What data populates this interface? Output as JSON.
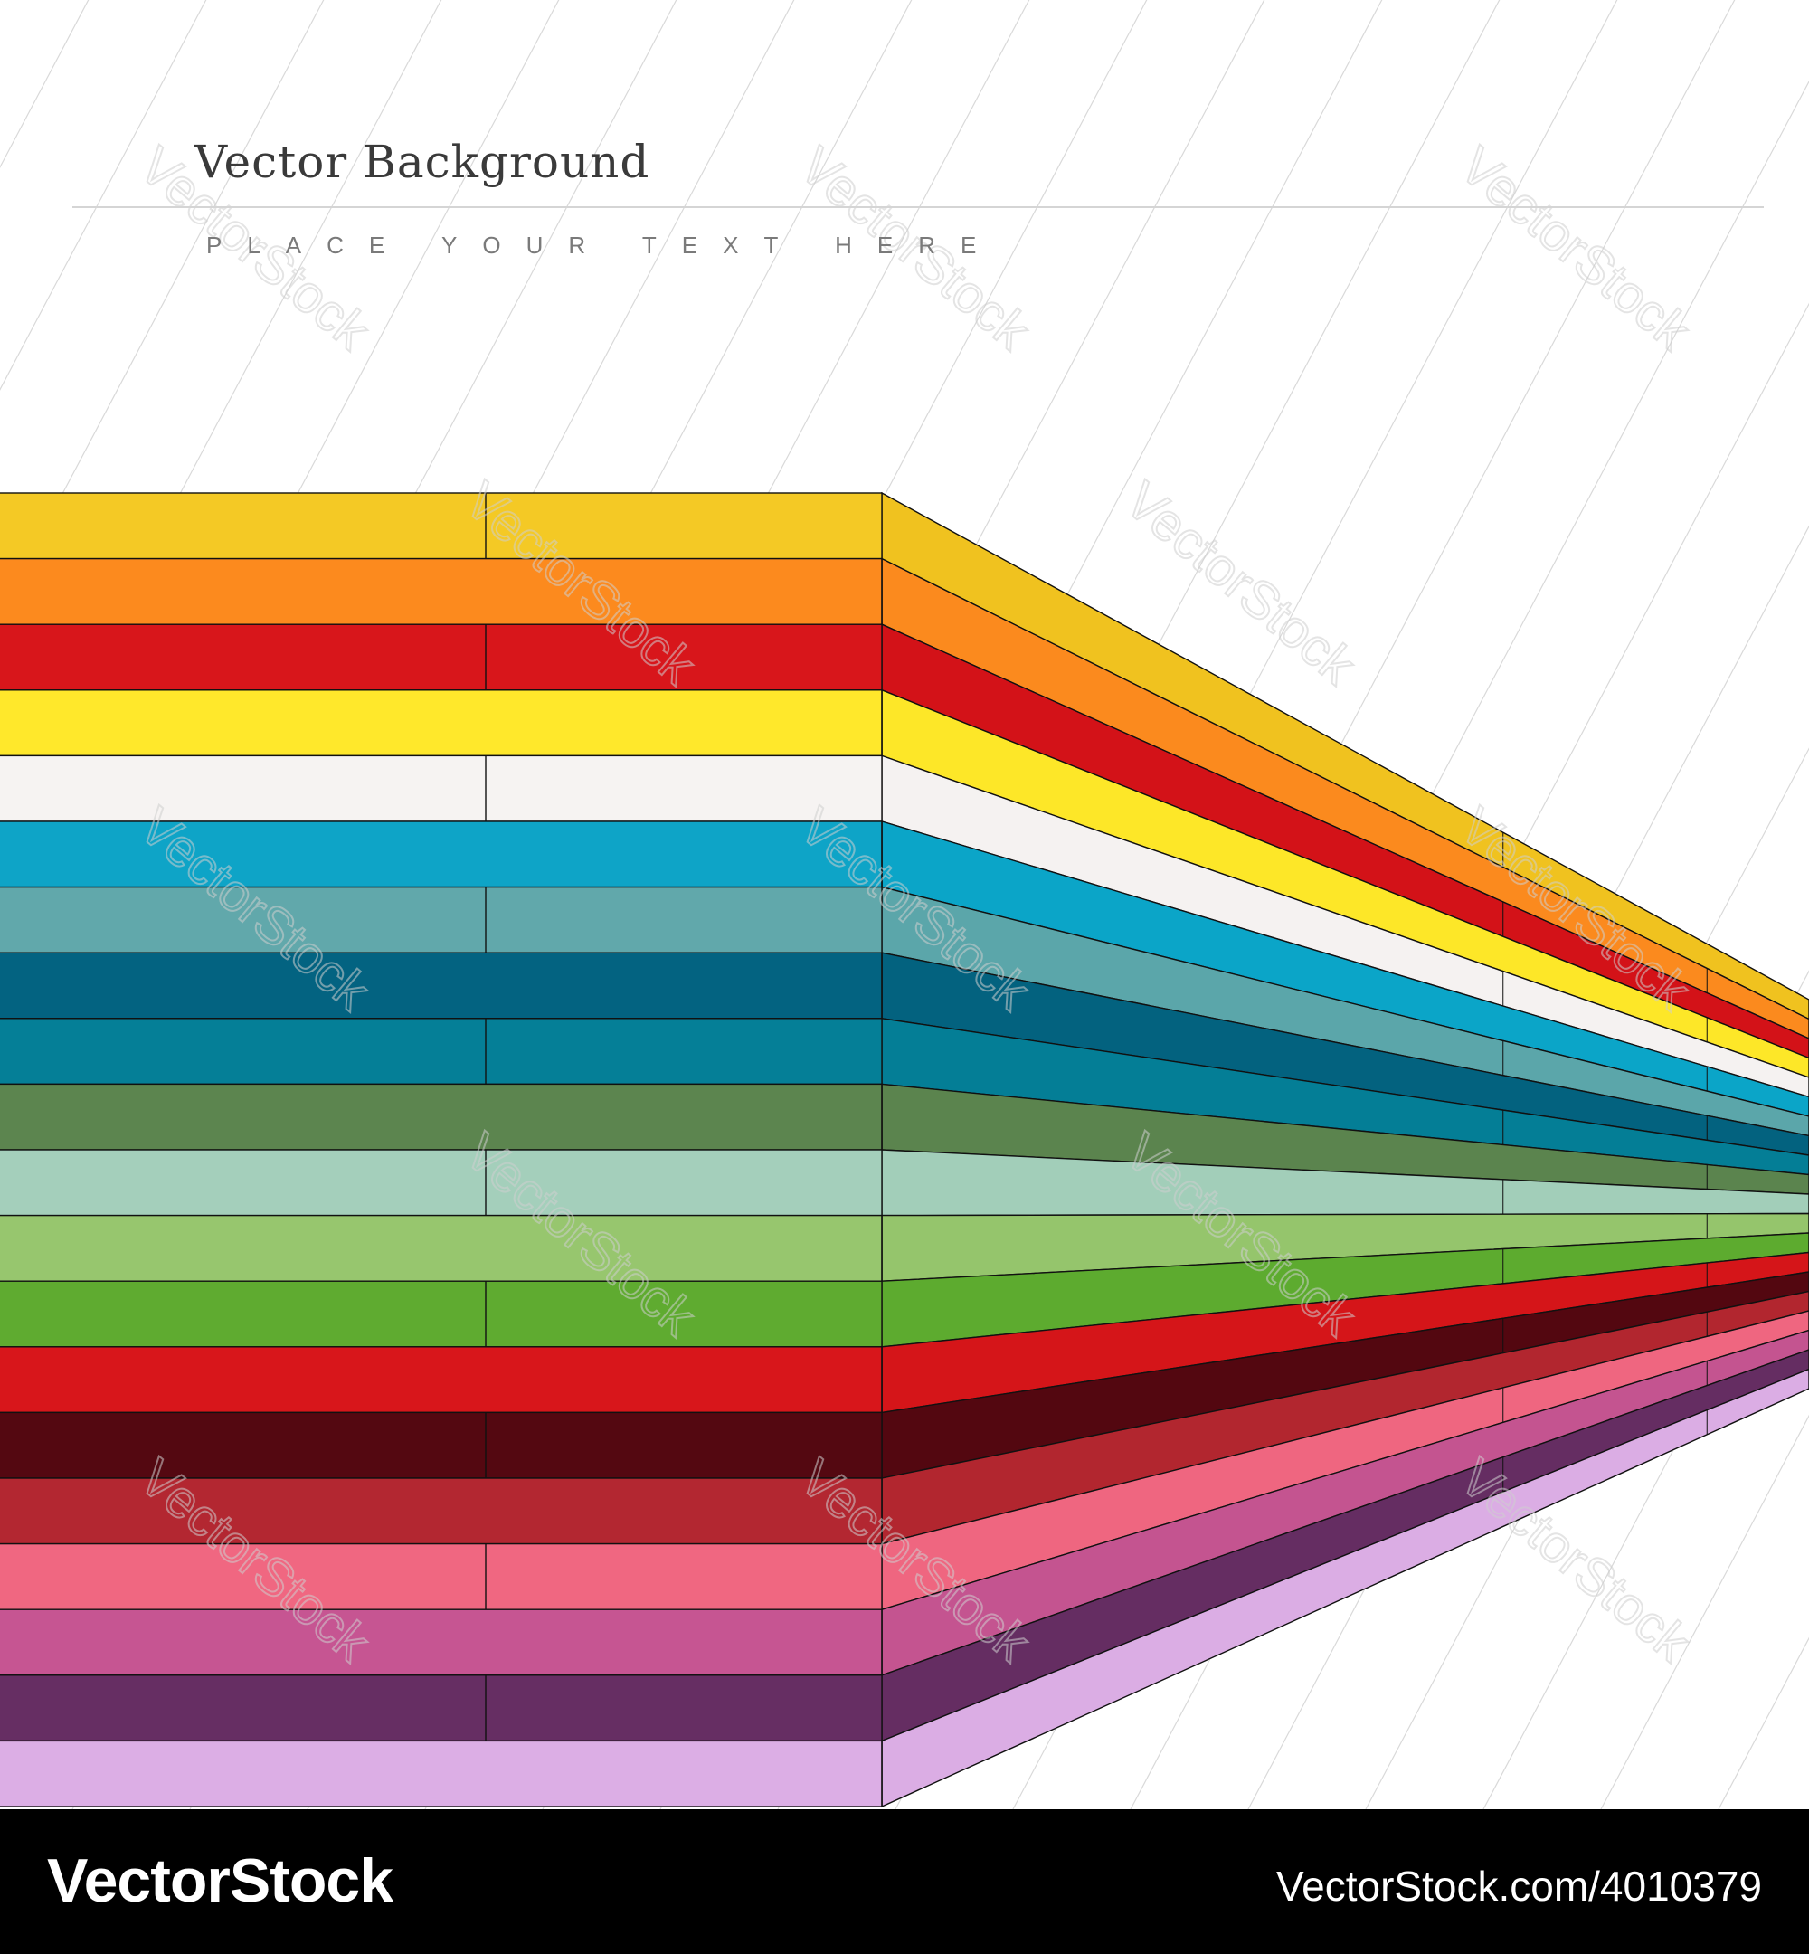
{
  "header": {
    "title": "Vector Background",
    "subtitle": "PLACE YOUR TEXT HERE"
  },
  "footer": {
    "brand": "VectorStock",
    "image_id": "VectorStock.com/4010379"
  },
  "watermark": {
    "text": "VectorStock"
  },
  "stripes": {
    "colors": [
      {
        "front": "#f4c925",
        "side": "#f0c21f"
      },
      {
        "front": "#fc8a1e",
        "side": "#fb8a1e"
      },
      {
        "front": "#d8161b",
        "side": "#d31218"
      },
      {
        "front": "#ffe82b",
        "side": "#fde728"
      },
      {
        "front": "#f6f3f2",
        "side": "#f5f2f1"
      },
      {
        "front": "#0ea4c7",
        "side": "#0ba5c8"
      },
      {
        "front": "#61a8ab",
        "side": "#5ba6aa"
      },
      {
        "front": "#036381",
        "side": "#03627f"
      },
      {
        "front": "#057f97",
        "side": "#047e96"
      },
      {
        "front": "#5c854f",
        "side": "#5b844e"
      },
      {
        "front": "#a4cfbb",
        "side": "#a2ceb9"
      },
      {
        "front": "#97c66e",
        "side": "#95c56c"
      },
      {
        "front": "#5fab30",
        "side": "#5dab2f"
      },
      {
        "front": "#d8161b",
        "side": "#d51519"
      },
      {
        "front": "#540811",
        "side": "#530710"
      },
      {
        "front": "#b32731",
        "side": "#b2262f"
      },
      {
        "front": "#f06781",
        "side": "#ef6680"
      },
      {
        "front": "#c65592",
        "side": "#c45490"
      },
      {
        "front": "#662e63",
        "side": "#652d62"
      },
      {
        "front": "#dcaee5",
        "side": "#dbade4"
      }
    ]
  }
}
